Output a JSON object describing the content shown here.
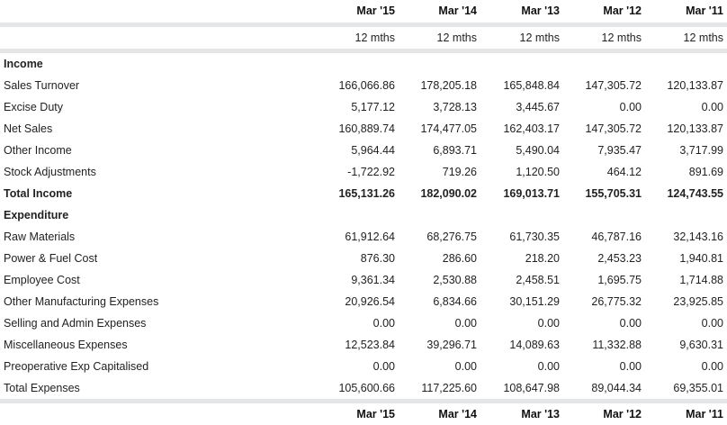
{
  "header": {
    "years": [
      "Mar '15",
      "Mar '14",
      "Mar '13",
      "Mar '12",
      "Mar '11"
    ],
    "months": [
      "12 mths",
      "12 mths",
      "12 mths",
      "12 mths",
      "12 mths"
    ]
  },
  "income": {
    "title": "Income",
    "rows": [
      {
        "label": "Sales Turnover",
        "values": [
          "166,066.86",
          "178,205.18",
          "165,848.84",
          "147,305.72",
          "120,133.87"
        ]
      },
      {
        "label": "Excise Duty",
        "values": [
          "5,177.12",
          "3,728.13",
          "3,445.67",
          "0.00",
          "0.00"
        ]
      },
      {
        "label": "Net Sales",
        "values": [
          "160,889.74",
          "174,477.05",
          "162,403.17",
          "147,305.72",
          "120,133.87"
        ]
      },
      {
        "label": "Other Income",
        "values": [
          "5,964.44",
          "6,893.71",
          "5,490.04",
          "7,935.47",
          "3,717.99"
        ]
      },
      {
        "label": "Stock Adjustments",
        "values": [
          "-1,722.92",
          "719.26",
          "1,120.50",
          "464.12",
          "891.69"
        ]
      }
    ],
    "total": {
      "label": "Total Income",
      "values": [
        "165,131.26",
        "182,090.02",
        "169,013.71",
        "155,705.31",
        "124,743.55"
      ]
    }
  },
  "expenditure": {
    "title": "Expenditure",
    "rows": [
      {
        "label": "Raw Materials",
        "values": [
          "61,912.64",
          "68,276.75",
          "61,730.35",
          "46,787.16",
          "32,143.16"
        ]
      },
      {
        "label": "Power & Fuel Cost",
        "values": [
          "876.30",
          "286.60",
          "218.20",
          "2,453.23",
          "1,940.81"
        ]
      },
      {
        "label": "Employee Cost",
        "values": [
          "9,361.34",
          "2,530.88",
          "2,458.51",
          "1,695.75",
          "1,714.88"
        ]
      },
      {
        "label": "Other Manufacturing Expenses",
        "values": [
          "20,926.54",
          "6,834.66",
          "30,151.29",
          "26,775.32",
          "23,925.85"
        ]
      },
      {
        "label": "Selling and Admin Expenses",
        "values": [
          "0.00",
          "0.00",
          "0.00",
          "0.00",
          "0.00"
        ]
      },
      {
        "label": "Miscellaneous Expenses",
        "values": [
          "12,523.84",
          "39,296.71",
          "14,089.63",
          "11,332.88",
          "9,630.31"
        ]
      },
      {
        "label": "Preoperative Exp Capitalised",
        "values": [
          "0.00",
          "0.00",
          "0.00",
          "0.00",
          "0.00"
        ]
      }
    ],
    "total": {
      "label": "Total Expenses",
      "values": [
        "105,600.66",
        "117,225.60",
        "108,647.98",
        "89,044.34",
        "69,355.01"
      ]
    }
  }
}
